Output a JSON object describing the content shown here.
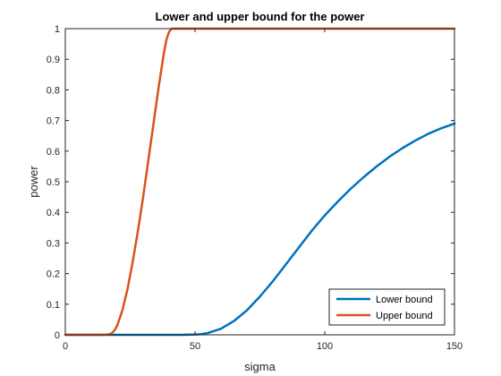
{
  "chart_data": {
    "type": "line",
    "title": "Lower and upper bound for the power",
    "xlabel": "sigma",
    "ylabel": "power",
    "xlim": [
      0,
      150
    ],
    "ylim": [
      0,
      1
    ],
    "xticks": [
      0,
      50,
      100,
      150
    ],
    "yticks": [
      0,
      0.1,
      0.2,
      0.3,
      0.4,
      0.5,
      0.6,
      0.7,
      0.8,
      0.9,
      1
    ],
    "grid": false,
    "legend_position": "bottom-right",
    "series": [
      {
        "name": "Lower bound",
        "color": "#0072BD",
        "x": [
          0,
          10,
          20,
          30,
          40,
          45,
          50,
          52,
          55,
          60,
          65,
          70,
          75,
          80,
          85,
          90,
          95,
          100,
          105,
          110,
          115,
          120,
          125,
          130,
          135,
          140,
          145,
          150
        ],
        "y": [
          0,
          0,
          0,
          0,
          0,
          0,
          0.001,
          0.002,
          0.006,
          0.02,
          0.045,
          0.08,
          0.125,
          0.175,
          0.23,
          0.285,
          0.34,
          0.39,
          0.435,
          0.477,
          0.515,
          0.55,
          0.582,
          0.61,
          0.635,
          0.657,
          0.675,
          0.69
        ]
      },
      {
        "name": "Upper bound",
        "color": "#D95319",
        "x": [
          0,
          10,
          15,
          17,
          18,
          19,
          20,
          22,
          24,
          26,
          28,
          30,
          32,
          34,
          36,
          38,
          39,
          40,
          41,
          42,
          50,
          60,
          80,
          100,
          120,
          150
        ],
        "y": [
          0,
          0,
          0,
          0.002,
          0.006,
          0.015,
          0.03,
          0.08,
          0.15,
          0.24,
          0.34,
          0.45,
          0.57,
          0.69,
          0.81,
          0.92,
          0.965,
          0.99,
          1,
          1,
          1,
          1,
          1,
          1,
          1,
          1
        ]
      }
    ]
  }
}
